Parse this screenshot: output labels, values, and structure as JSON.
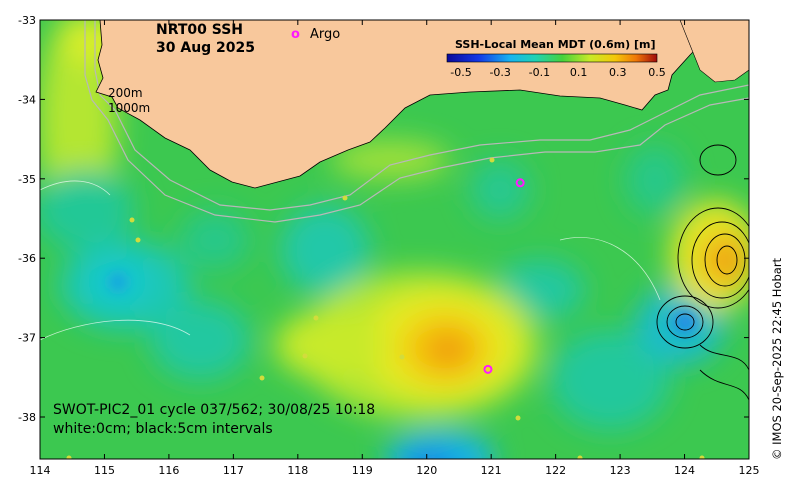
{
  "map": {
    "title_line1": "NRT00 SSH",
    "title_line2": "30 Aug 2025",
    "argo_marker": "o",
    "argo_label": "Argo",
    "depth_label_200": "200m",
    "depth_label_1000": "1000m",
    "swot_caption": "SWOT-PIC2_01 cycle 037/562; 30/08/25 10:18",
    "contour_caption": "white:0cm; black:5cm intervals",
    "credit": "© IMOS 20-Sep-2025 22:45 Hobart",
    "extent": {
      "lon_min": 114,
      "lon_max": 125,
      "lat_min": -38.5,
      "lat_max": -33
    }
  },
  "axes": {
    "x_ticks": [
      "114",
      "115",
      "116",
      "117",
      "118",
      "119",
      "120",
      "121",
      "122",
      "123",
      "124",
      "125"
    ],
    "y_ticks": [
      "-33",
      "-34",
      "-35",
      "-36",
      "-37",
      "-38"
    ]
  },
  "colorbar": {
    "title": "SSH-Local Mean MDT (0.6m) [m]",
    "tick_labels": [
      "-0.5",
      "-0.3",
      "-0.1",
      "0.1",
      "0.3",
      "0.5"
    ],
    "range": [
      -0.5,
      0.5
    ]
  },
  "colors": {
    "land": "#f8c89c",
    "ocean_base": "#3cc850",
    "argo": "#ff1aff",
    "contour_white": "#ffffff",
    "contour_black": "#000000"
  },
  "argo_floats": [
    {
      "lon": 121.45,
      "lat": -35.05
    },
    {
      "lon": 120.95,
      "lat": -37.4
    }
  ]
}
